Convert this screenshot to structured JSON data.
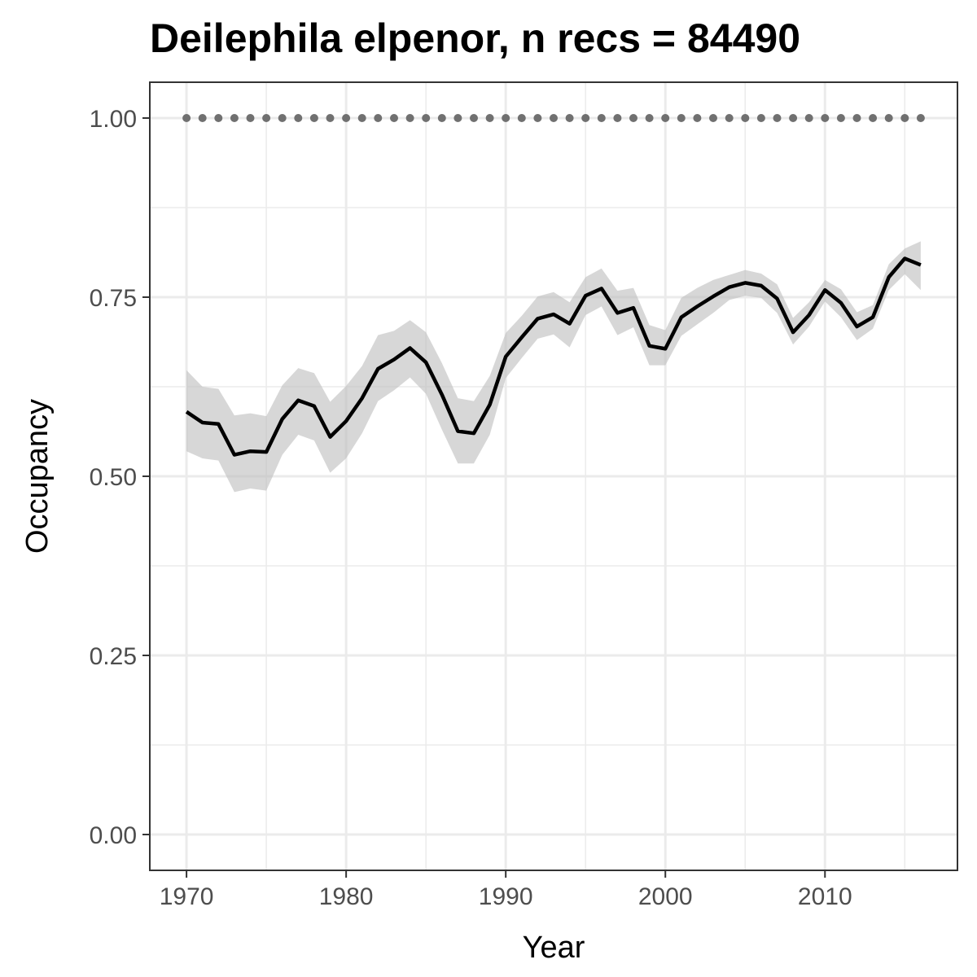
{
  "chart_data": {
    "type": "line",
    "title": "Deilephila elpenor, n recs = 84490",
    "xlabel": "Year",
    "ylabel": "Occupancy",
    "xlim": [
      1967.7,
      2018.3
    ],
    "ylim": [
      -0.05,
      1.05
    ],
    "x_ticks": [
      1970,
      1980,
      1990,
      2000,
      2010
    ],
    "x_tick_labels": [
      "1970",
      "1980",
      "1990",
      "2000",
      "2010"
    ],
    "y_ticks": [
      0,
      0.25,
      0.5,
      0.75,
      1.0
    ],
    "y_tick_labels": [
      "0.00",
      "0.25",
      "0.50",
      "0.75",
      "1.00"
    ],
    "grid": true,
    "colors": {
      "line": "#000000",
      "ribbon": "#bdbdbd",
      "points": "#707070",
      "grid": "#ebebeb",
      "border": "#333333"
    },
    "x": [
      1970,
      1971,
      1972,
      1973,
      1974,
      1975,
      1976,
      1977,
      1978,
      1979,
      1980,
      1981,
      1982,
      1983,
      1984,
      1985,
      1986,
      1987,
      1988,
      1989,
      1990,
      1991,
      1992,
      1993,
      1994,
      1995,
      1996,
      1997,
      1998,
      1999,
      2000,
      2001,
      2002,
      2003,
      2004,
      2005,
      2006,
      2007,
      2008,
      2009,
      2010,
      2011,
      2012,
      2013,
      2014,
      2015,
      2016
    ],
    "series": [
      {
        "values": [
          0.59,
          0.575,
          0.573,
          0.53,
          0.535,
          0.534,
          0.58,
          0.606,
          0.598,
          0.555,
          0.577,
          0.609,
          0.65,
          0.663,
          0.679,
          0.659,
          0.614,
          0.563,
          0.56,
          0.6,
          0.667,
          0.694,
          0.72,
          0.726,
          0.713,
          0.752,
          0.762,
          0.728,
          0.735,
          0.682,
          0.678,
          0.722,
          0.737,
          0.751,
          0.764,
          0.77,
          0.766,
          0.748,
          0.701,
          0.725,
          0.76,
          0.742,
          0.709,
          0.722,
          0.778,
          0.804,
          0.795
        ],
        "lower": [
          0.535,
          0.525,
          0.522,
          0.478,
          0.483,
          0.48,
          0.53,
          0.558,
          0.55,
          0.505,
          0.525,
          0.56,
          0.605,
          0.62,
          0.638,
          0.615,
          0.565,
          0.518,
          0.518,
          0.558,
          0.637,
          0.665,
          0.692,
          0.698,
          0.68,
          0.725,
          0.737,
          0.697,
          0.708,
          0.655,
          0.655,
          0.696,
          0.712,
          0.728,
          0.746,
          0.752,
          0.749,
          0.728,
          0.684,
          0.709,
          0.744,
          0.722,
          0.69,
          0.706,
          0.76,
          0.782,
          0.76
        ],
        "upper": [
          0.648,
          0.625,
          0.622,
          0.585,
          0.588,
          0.584,
          0.627,
          0.651,
          0.644,
          0.604,
          0.626,
          0.654,
          0.697,
          0.703,
          0.718,
          0.701,
          0.658,
          0.609,
          0.605,
          0.64,
          0.7,
          0.724,
          0.751,
          0.757,
          0.743,
          0.778,
          0.79,
          0.759,
          0.763,
          0.711,
          0.704,
          0.749,
          0.763,
          0.774,
          0.781,
          0.788,
          0.783,
          0.768,
          0.721,
          0.743,
          0.774,
          0.761,
          0.729,
          0.739,
          0.796,
          0.818,
          0.828
        ]
      },
      {
        "values": [
          1,
          1,
          1,
          1,
          1,
          1,
          1,
          1,
          1,
          1,
          1,
          1,
          1,
          1,
          1,
          1,
          1,
          1,
          1,
          1,
          1,
          1,
          1,
          1,
          1,
          1,
          1,
          1,
          1,
          1,
          1,
          1,
          1,
          1,
          1,
          1,
          1,
          1,
          1,
          1,
          1,
          1,
          1,
          1,
          1,
          1,
          1
        ]
      }
    ]
  }
}
